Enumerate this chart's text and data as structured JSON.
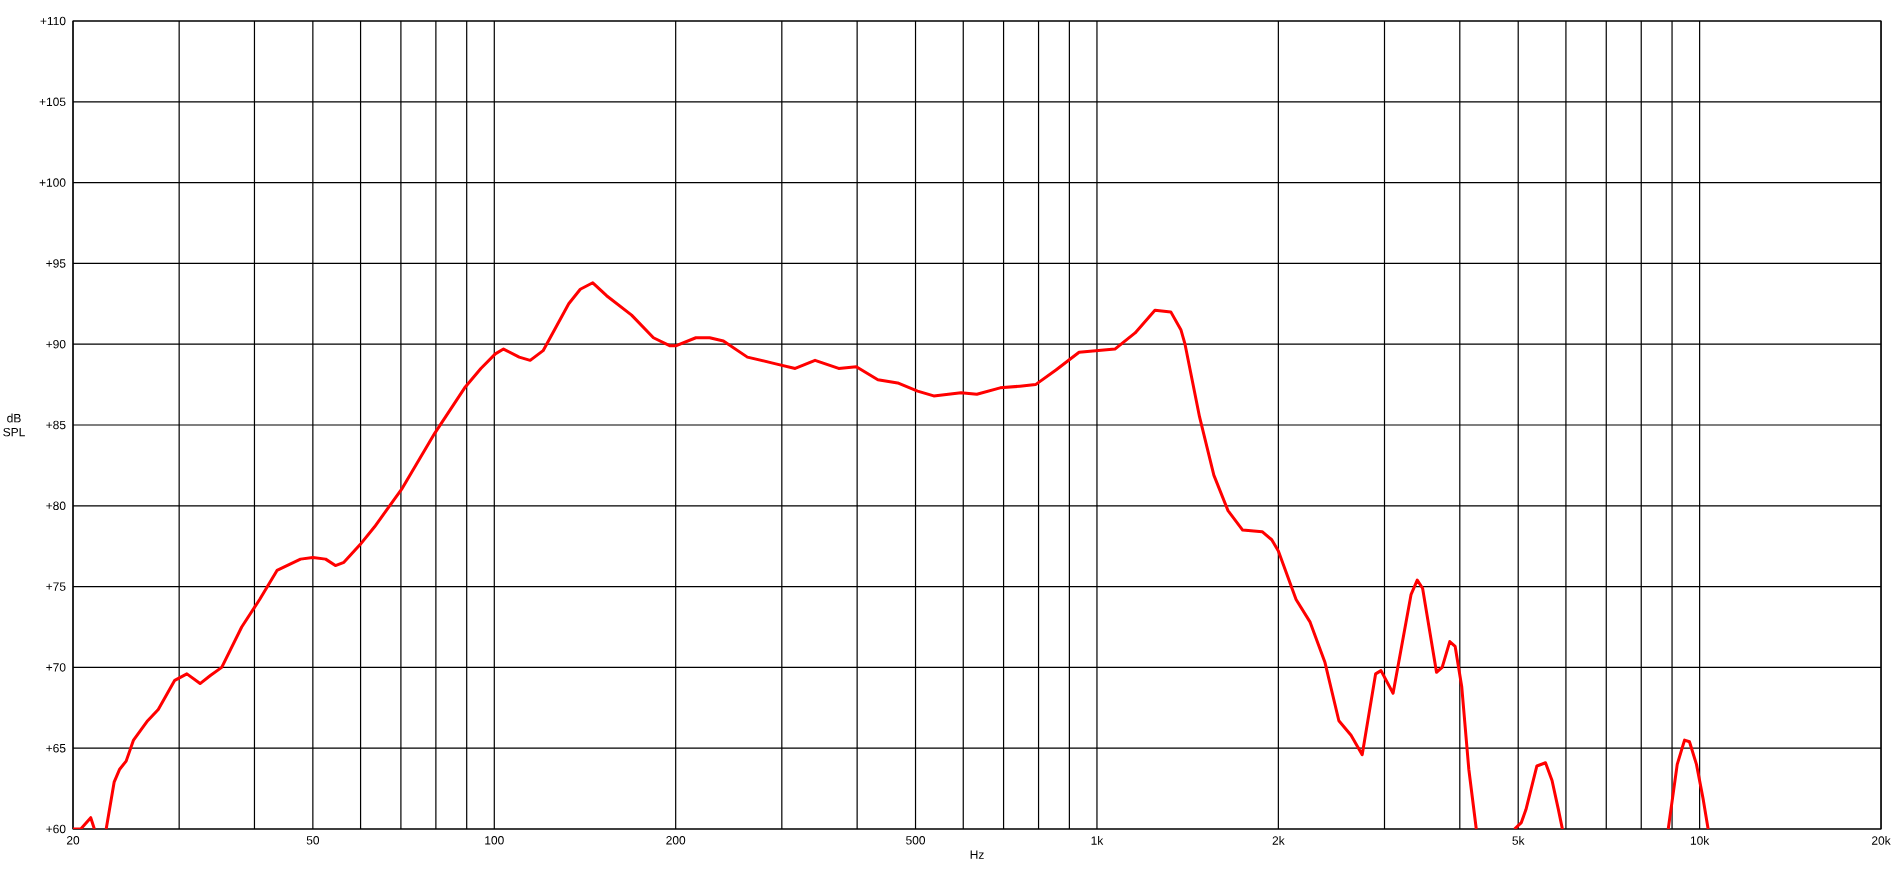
{
  "chart_data": {
    "type": "line",
    "xlabel": "Hz",
    "ylabel": "dB SPL",
    "log": "x",
    "grid": true,
    "color": "#ff0000",
    "xlim": [
      20,
      20000
    ],
    "ylim": [
      60,
      110
    ],
    "xticks": [
      20,
      {
        "value": 30,
        "label": null
      },
      {
        "value": 40,
        "label": null
      },
      50,
      {
        "value": 60,
        "label": null
      },
      {
        "value": 70,
        "label": null
      },
      {
        "value": 80,
        "label": null
      },
      {
        "value": 90,
        "label": null
      },
      100,
      200,
      {
        "value": 300,
        "label": null
      },
      {
        "value": 400,
        "label": null
      },
      500,
      {
        "value": 600,
        "label": null
      },
      {
        "value": 700,
        "label": null
      },
      {
        "value": 800,
        "label": null
      },
      {
        "value": 900,
        "label": null
      },
      {
        "value": 1000,
        "label": "1k"
      },
      {
        "value": 2000,
        "label": "2k"
      },
      {
        "value": 3000,
        "label": null
      },
      {
        "value": 4000,
        "label": null
      },
      {
        "value": 5000,
        "label": "5k"
      },
      {
        "value": 6000,
        "label": null
      },
      {
        "value": 7000,
        "label": null
      },
      {
        "value": 8000,
        "label": null
      },
      {
        "value": 9000,
        "label": null
      },
      {
        "value": 10000,
        "label": "10k"
      },
      {
        "value": 20000,
        "label": "20k"
      }
    ],
    "yticks": [
      {
        "value": 60,
        "label": "+60"
      },
      {
        "value": 65,
        "label": "+65"
      },
      {
        "value": 70,
        "label": "+70"
      },
      {
        "value": 75,
        "label": "+75"
      },
      {
        "value": 80,
        "label": "+80"
      },
      {
        "value": 85,
        "label": "+85"
      },
      {
        "value": 90,
        "label": "+90"
      },
      {
        "value": 95,
        "label": "+95"
      },
      {
        "value": 100,
        "label": "+100"
      },
      {
        "value": 105,
        "label": "+105"
      },
      {
        "value": 110,
        "label": "+110"
      }
    ],
    "x": [
      20,
      20.6,
      21.4,
      21.7,
      22,
      22.7,
      23.4,
      23.9,
      24.5,
      25.2,
      26.6,
      27.7,
      29.5,
      30.9,
      32.5,
      33.8,
      35.3,
      38.1,
      40.8,
      43.6,
      47.7,
      50,
      52.5,
      54.5,
      56.3,
      59.9,
      63.3,
      70.4,
      79.7,
      89.3,
      95,
      100.4,
      103.6,
      110,
      114.7,
      120.5,
      132.9,
      138.9,
      145.7,
      153.6,
      169,
      183.7,
      195.8,
      200,
      216,
      227.7,
      240,
      263,
      292,
      315.7,
      340.6,
      372.8,
      398.8,
      433,
      467,
      504,
      536,
      595,
      632,
      691,
      745,
      791,
      855,
      934,
      1071,
      1157,
      1248,
      1326,
      1378,
      1400,
      1480,
      1563,
      1650,
      1745,
      1880,
      1950,
      2000,
      2140,
      2258,
      2390,
      2520,
      2640,
      2755,
      2900,
      2960,
      3100,
      3320,
      3400,
      3470,
      3660,
      3740,
      3850,
      3930,
      4030,
      4140,
      4260,
      4600,
      4930,
      5060,
      5150,
      5370,
      5550,
      5690,
      5830,
      5920,
      7500,
      8870,
      9180,
      9440,
      9620,
      9880,
      10130,
      10330
    ],
    "values": [
      60,
      60,
      60.7,
      60,
      null,
      60,
      62.9,
      63.7,
      64.2,
      65.5,
      66.7,
      67.4,
      69.2,
      69.6,
      69.0,
      69.5,
      70.0,
      72.5,
      74.2,
      76.0,
      76.7,
      76.8,
      76.7,
      76.3,
      76.5,
      77.6,
      78.7,
      81.1,
      84.5,
      87.3,
      88.5,
      89.4,
      89.7,
      89.2,
      89.0,
      89.6,
      92.5,
      93.4,
      93.8,
      93.0,
      91.8,
      90.4,
      89.9,
      89.9,
      90.4,
      90.4,
      90.2,
      89.2,
      88.8,
      88.5,
      89.0,
      88.5,
      88.6,
      87.8,
      87.6,
      87.1,
      86.8,
      87.0,
      86.9,
      87.3,
      87.4,
      87.5,
      88.4,
      89.5,
      89.7,
      90.7,
      92.1,
      92.0,
      90.9,
      90.0,
      85.5,
      81.9,
      79.7,
      78.5,
      78.4,
      77.9,
      77.2,
      74.2,
      72.8,
      70.3,
      66.7,
      65.8,
      64.6,
      69.6,
      69.8,
      68.4,
      74.5,
      75.4,
      74.9,
      69.7,
      70.0,
      71.6,
      71.3,
      68.8,
      63.7,
      60,
      null,
      60,
      60.4,
      61.2,
      63.9,
      64.1,
      63.0,
      61.2,
      60,
      null,
      60,
      64.0,
      65.5,
      65.4,
      64.0,
      61.9,
      60
    ]
  }
}
